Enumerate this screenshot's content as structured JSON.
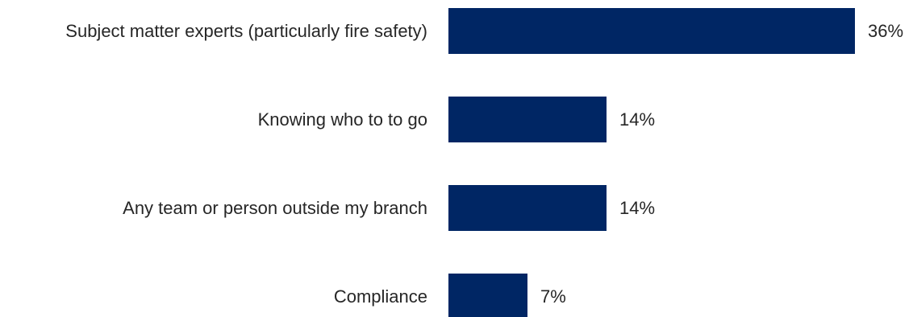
{
  "chart_data": {
    "type": "bar",
    "orientation": "horizontal",
    "title": "",
    "xlabel": "",
    "ylabel": "",
    "categories": [
      "Subject matter experts (particularly fire safety)",
      "Knowing who to to go",
      "Any team or person outside my branch",
      "Compliance"
    ],
    "values": [
      36,
      14,
      14,
      7
    ],
    "value_labels": [
      "36%",
      "14%",
      "14%",
      "7%"
    ],
    "value_unit": "%",
    "xlim": [
      0,
      36
    ],
    "grid": false,
    "legend": "none",
    "colors": {
      "bar": "#002664",
      "text": "#262626",
      "background": "#ffffff"
    }
  }
}
